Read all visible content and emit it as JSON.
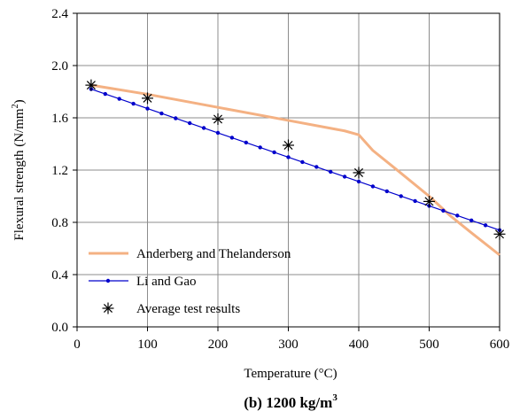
{
  "chart_data": {
    "type": "line",
    "xlabel": "Temperature (°C)",
    "ylabel_prefix": "Flexural strength (N/mm",
    "ylabel_sup": "2",
    "ylabel_suffix": ")",
    "xlim": [
      0,
      600
    ],
    "ylim": [
      0.0,
      2.4
    ],
    "x_ticks": [
      0,
      100,
      200,
      300,
      400,
      500,
      600
    ],
    "y_ticks": [
      "0.0",
      "0.4",
      "0.8",
      "1.2",
      "1.6",
      "2.0",
      "2.4"
    ],
    "grid": true,
    "legend_position": "bottom-left",
    "caption_main": "(b) 1200 kg/m",
    "caption_sup": "3",
    "series": [
      {
        "name": "Anderberg and Thelanderson",
        "style": "line",
        "color": "#F4B183",
        "x": [
          20,
          100,
          200,
          300,
          380,
          400,
          420,
          450,
          500,
          530,
          560,
          600
        ],
        "y": [
          1.85,
          1.78,
          1.68,
          1.58,
          1.5,
          1.47,
          1.35,
          1.22,
          1.0,
          0.85,
          0.72,
          0.55
        ]
      },
      {
        "name": "Li and Gao",
        "style": "line-dots",
        "color": "#0000CC",
        "x": [
          20,
          600
        ],
        "y": [
          1.82,
          0.74
        ],
        "dot_step": 20
      },
      {
        "name": "Average test results",
        "style": "markers",
        "marker": "asterisk",
        "color": "#000000",
        "x": [
          20,
          100,
          200,
          300,
          400,
          500,
          600
        ],
        "y": [
          1.85,
          1.75,
          1.59,
          1.39,
          1.18,
          0.96,
          0.71
        ]
      }
    ]
  }
}
